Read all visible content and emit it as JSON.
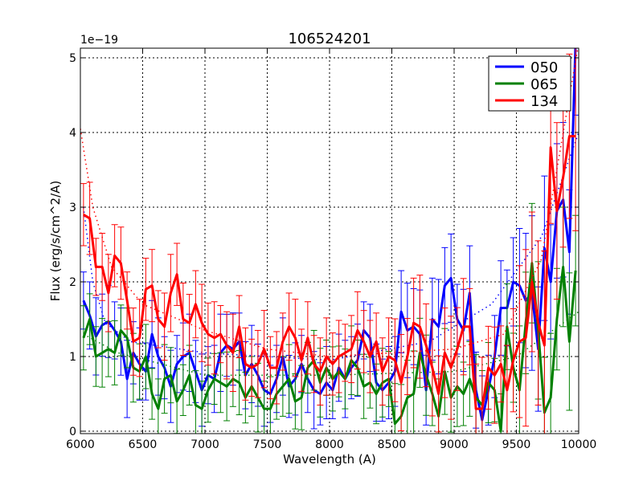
{
  "chart_data": {
    "type": "line",
    "title": "106524201",
    "xlabel": "Wavelength (A)",
    "ylabel": "Flux (erg/s/cm^2/A)",
    "y_offset_label": "1e−19",
    "xlim": [
      6000,
      10000
    ],
    "ylim": [
      0,
      5.13
    ],
    "xticks": [
      6000,
      6500,
      7000,
      7500,
      8000,
      8500,
      9000,
      9500,
      10000
    ],
    "yticks": [
      0,
      1,
      2,
      3,
      4,
      5
    ],
    "grid": true,
    "legend_position": "top-right",
    "x_start": 6025,
    "x_step": 50,
    "series": [
      {
        "name": "050",
        "color": "#0000ff",
        "values": [
          1.75,
          1.55,
          1.27,
          1.42,
          1.47,
          1.35,
          1.2,
          0.7,
          1.05,
          0.9,
          0.8,
          1.3,
          1.0,
          0.85,
          0.6,
          0.9,
          1.0,
          1.05,
          0.8,
          0.55,
          0.75,
          0.7,
          1.05,
          1.15,
          1.1,
          1.2,
          0.75,
          0.9,
          0.75,
          0.55,
          0.5,
          0.7,
          1.0,
          0.6,
          0.7,
          0.9,
          0.7,
          0.55,
          0.5,
          0.65,
          0.55,
          0.85,
          0.7,
          0.85,
          0.95,
          1.35,
          1.25,
          0.65,
          0.55,
          0.65,
          0.8,
          1.6,
          1.35,
          1.4,
          1.3,
          0.55,
          1.5,
          1.4,
          1.95,
          2.05,
          1.5,
          1.35,
          1.85,
          0.55,
          0.15,
          0.55,
          1.0,
          1.65,
          1.65,
          2.0,
          1.95,
          1.75,
          1.85,
          1.1,
          2.45,
          2.0,
          2.95,
          3.1,
          2.4,
          5.2
        ],
        "yerr": [
          {
            "until": 8500,
            "err": 0.45
          },
          {
            "until": 9500,
            "err": 0.55
          },
          {
            "until": 10000,
            "err": 0.9
          }
        ],
        "model": [
          [
            6025,
            3.0
          ],
          [
            6100,
            2.0
          ],
          [
            6200,
            1.45
          ],
          [
            6400,
            1.2
          ],
          [
            7000,
            1.05
          ],
          [
            8000,
            0.95
          ],
          [
            8800,
            1.2
          ],
          [
            9300,
            1.7
          ],
          [
            9700,
            2.6
          ],
          [
            10000,
            4.0
          ]
        ]
      },
      {
        "name": "065",
        "color": "#008000",
        "values": [
          1.25,
          1.5,
          1.0,
          1.05,
          1.1,
          1.05,
          1.35,
          1.25,
          0.85,
          0.8,
          1.0,
          0.5,
          0.3,
          0.7,
          0.75,
          0.4,
          0.55,
          0.75,
          0.35,
          0.3,
          0.55,
          0.7,
          0.65,
          0.6,
          0.7,
          0.65,
          0.45,
          0.6,
          0.45,
          0.3,
          0.3,
          0.5,
          0.6,
          0.7,
          0.4,
          0.45,
          0.85,
          0.95,
          0.65,
          0.85,
          0.7,
          0.8,
          0.7,
          0.95,
          0.85,
          0.6,
          0.65,
          0.5,
          0.65,
          0.7,
          0.1,
          0.2,
          0.45,
          0.5,
          1.05,
          0.75,
          0.5,
          0.2,
          0.8,
          0.45,
          0.6,
          0.5,
          0.7,
          0.45,
          0.35,
          0.65,
          0.55,
          0.0,
          1.4,
          0.85,
          0.55,
          1.45,
          2.25,
          1.35,
          0.25,
          0.45,
          1.5,
          2.2,
          1.2,
          2.15
        ],
        "yerr": [
          {
            "until": 8500,
            "err": 0.4
          },
          {
            "until": 9500,
            "err": 0.5
          },
          {
            "until": 10000,
            "err": 0.8
          }
        ],
        "model": [
          [
            6025,
            1.3
          ],
          [
            6300,
            1.05
          ],
          [
            7000,
            0.75
          ],
          [
            8000,
            0.75
          ],
          [
            9000,
            0.8
          ],
          [
            9500,
            1.0
          ],
          [
            10000,
            1.6
          ]
        ]
      },
      {
        "name": "134",
        "color": "#ff0000",
        "values": [
          2.9,
          2.85,
          2.2,
          2.2,
          1.85,
          2.35,
          2.25,
          1.75,
          1.2,
          1.25,
          1.9,
          1.95,
          1.5,
          1.4,
          1.85,
          2.1,
          1.5,
          1.45,
          1.7,
          1.45,
          1.3,
          1.25,
          1.3,
          1.15,
          1.05,
          1.4,
          0.9,
          0.85,
          0.9,
          1.1,
          0.85,
          0.85,
          1.2,
          1.4,
          1.25,
          0.95,
          1.25,
          0.9,
          0.8,
          1.0,
          0.9,
          1.0,
          1.05,
          1.1,
          1.35,
          1.2,
          1.0,
          1.2,
          0.8,
          1.0,
          0.95,
          0.65,
          1.0,
          1.45,
          1.4,
          1.15,
          0.85,
          0.5,
          1.05,
          0.85,
          1.1,
          1.4,
          1.4,
          0.3,
          0.3,
          0.85,
          0.75,
          0.9,
          0.55,
          0.95,
          1.2,
          1.25,
          2.0,
          1.45,
          1.15,
          3.8,
          2.95,
          3.4,
          3.95,
          3.95
        ],
        "yerr": [
          {
            "until": 8500,
            "err": 0.45
          },
          {
            "until": 9500,
            "err": 0.6
          },
          {
            "until": 10000,
            "err": 1.1
          }
        ],
        "model": [
          [
            6000,
            4.05
          ],
          [
            6100,
            3.0
          ],
          [
            6250,
            2.2
          ],
          [
            6500,
            1.7
          ],
          [
            7000,
            1.35
          ],
          [
            7500,
            1.1
          ],
          [
            8000,
            1.0
          ],
          [
            8500,
            1.05
          ],
          [
            9000,
            1.1
          ],
          [
            9400,
            1.3
          ],
          [
            9700,
            2.3
          ],
          [
            10000,
            5.2
          ]
        ]
      }
    ]
  }
}
